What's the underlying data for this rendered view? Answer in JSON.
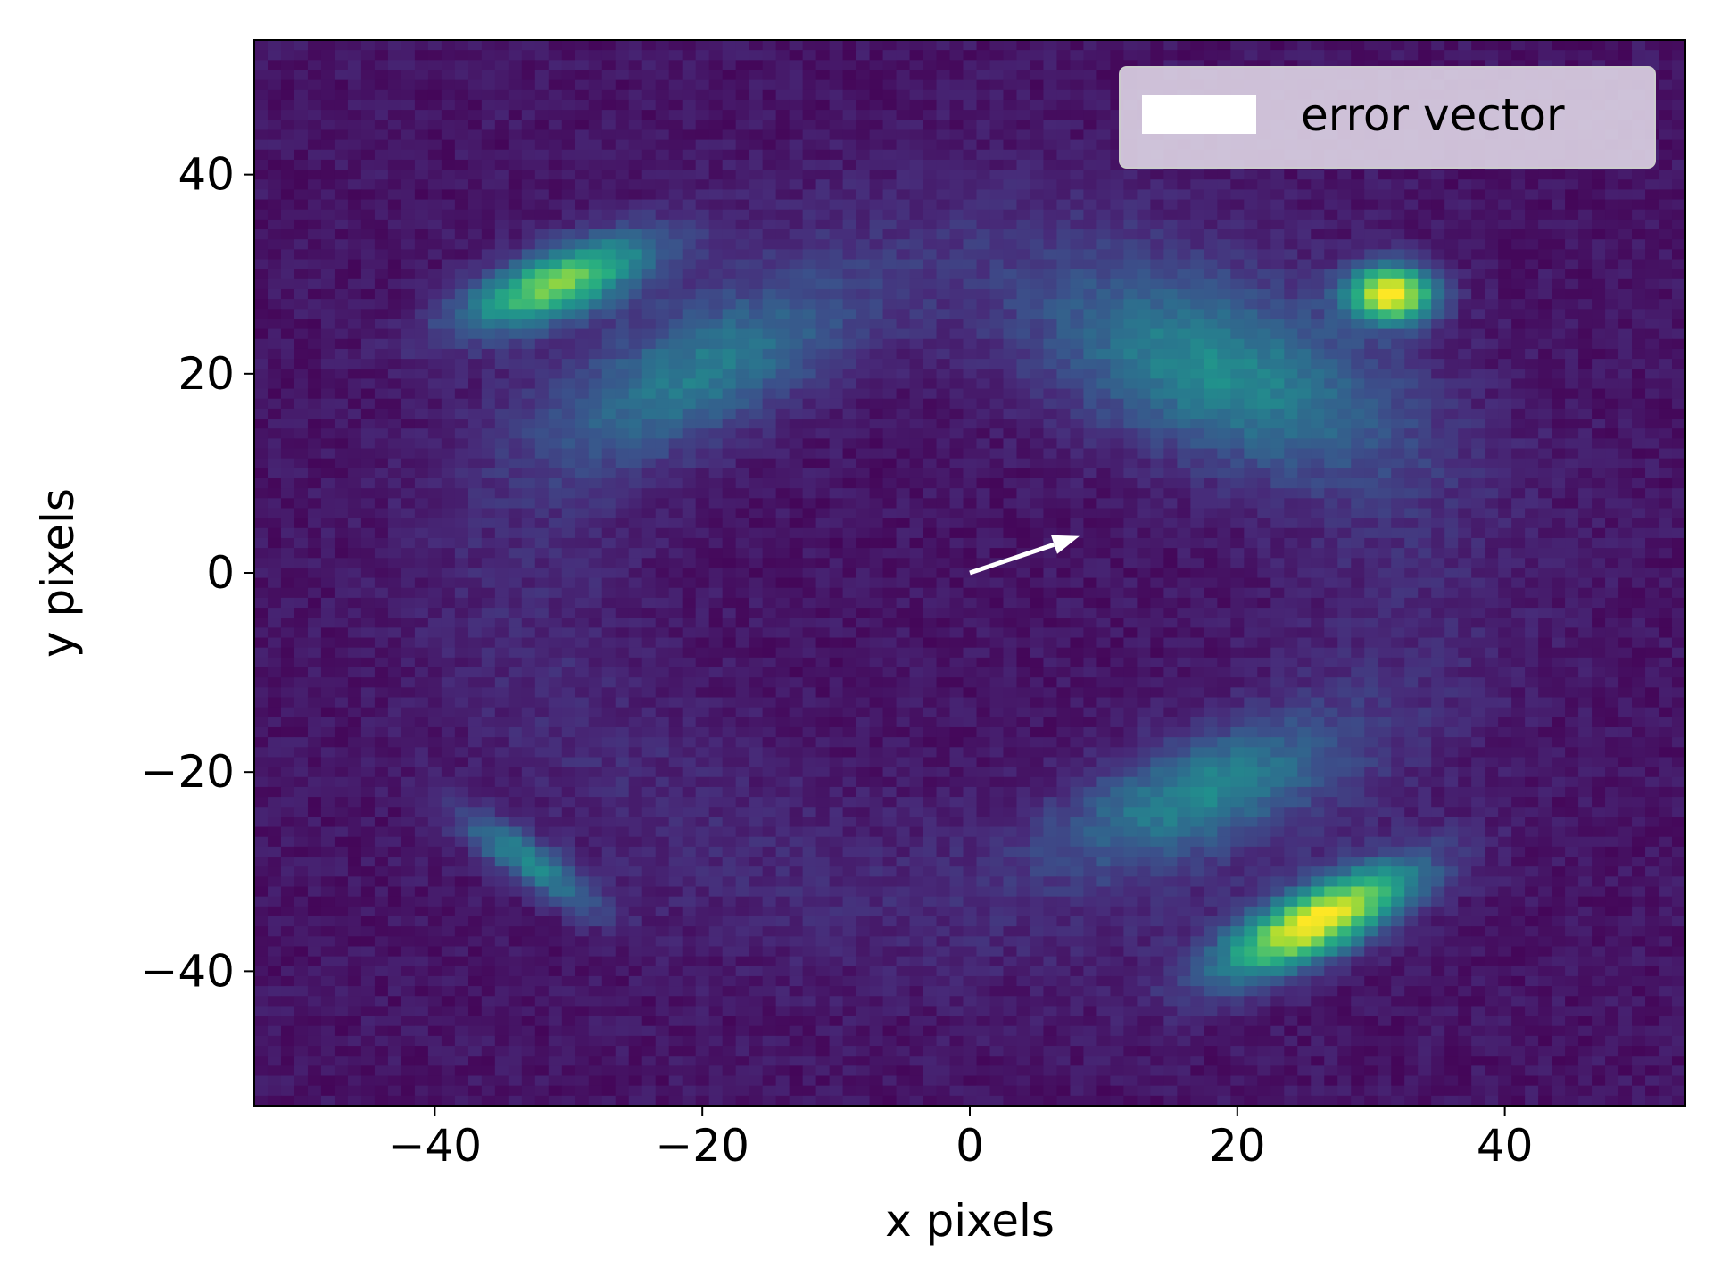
{
  "chart_data": {
    "type": "heatmap",
    "title": "",
    "xlabel": "x pixels",
    "ylabel": "y pixels",
    "xlim": [
      -53.5,
      53.5
    ],
    "ylim": [
      -53.5,
      53.5
    ],
    "xticks": [
      -40,
      -20,
      0,
      20,
      40
    ],
    "yticks": [
      -40,
      -20,
      0,
      20,
      40
    ],
    "xtick_labels": [
      "−40",
      "−20",
      "0",
      "20",
      "40"
    ],
    "ytick_labels": [
      "−40",
      "−20",
      "0",
      "20",
      "40"
    ],
    "grid": false,
    "colormap": "viridis",
    "value_range": [
      0,
      1
    ],
    "background_level": 0.06,
    "hotspots": [
      {
        "x": -31.0,
        "y": 29.0,
        "peak": 0.72,
        "description": "upper-left arc"
      },
      {
        "x": -20.0,
        "y": 20.0,
        "peak": 0.32,
        "description": "upper-left diffuse band"
      },
      {
        "x": 18.0,
        "y": 20.0,
        "peak": 0.38,
        "description": "upper-right diffuse region"
      },
      {
        "x": 31.5,
        "y": 28.0,
        "peak": 0.96,
        "description": "upper-right bright spot"
      },
      {
        "x": 26.0,
        "y": -35.0,
        "peak": 0.95,
        "description": "lower-right bright streak"
      },
      {
        "x": 17.0,
        "y": -22.0,
        "peak": 0.36,
        "description": "lower-right diffuse band"
      },
      {
        "x": -33.0,
        "y": -29.0,
        "peak": 0.4,
        "description": "lower-left faint arc"
      }
    ],
    "arrow": {
      "x0": 0,
      "y0": 0,
      "dx": 8.2,
      "dy": 3.7,
      "color": "#ffffff"
    },
    "legend": {
      "position": "upper right",
      "entries": [
        {
          "label": "error vector",
          "color": "#ffffff"
        }
      ]
    }
  }
}
